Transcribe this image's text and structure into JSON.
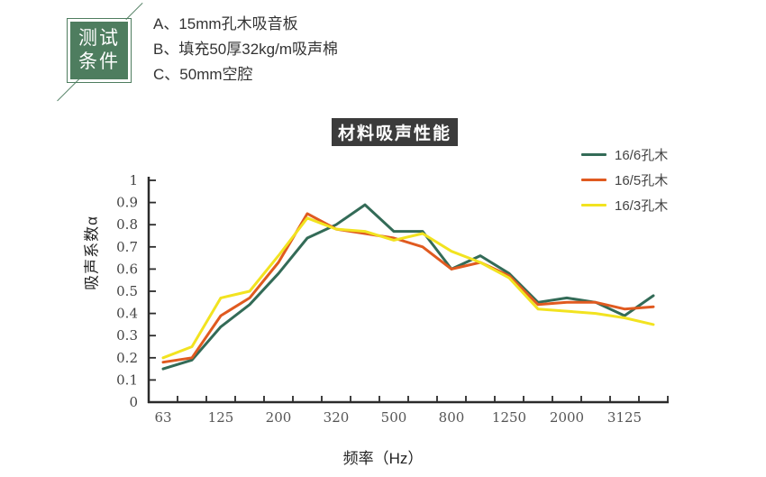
{
  "test_conditions": {
    "badge_line1": "测试",
    "badge_line2": "条件",
    "items": [
      {
        "label": "A、",
        "text": "15mm孔木吸音板"
      },
      {
        "label": "B、",
        "text": "填充50厚32kg/m吸声棉"
      },
      {
        "label": "C、",
        "text": "50mm空腔"
      }
    ]
  },
  "title_badge": "材料吸声性能",
  "colors": {
    "badge_green": "#4e7d5f",
    "title_bg": "#3b3b3b",
    "axis": "#2b2b2b",
    "tick_label": "#555555",
    "series_green": "#336b57",
    "series_orange": "#e05a20",
    "series_yellow": "#f2e320"
  },
  "chart_data": {
    "type": "line",
    "title": "材料吸声性能",
    "xlabel": "频率（Hz）",
    "ylabel": "吸声系数α",
    "ylim": [
      0,
      1
    ],
    "ytick_step": 0.1,
    "grid": false,
    "legend_position": "upper-right-outside",
    "x_tick_labels_visible": [
      "63",
      "125",
      "200",
      "320",
      "500",
      "800",
      "1250",
      "2000",
      "3125"
    ],
    "x_labels": [
      "63",
      "",
      "125",
      "",
      "200",
      "",
      "320",
      "",
      "500",
      "",
      "800",
      "",
      "1250",
      "",
      "2000",
      "",
      "3125",
      ""
    ],
    "series": [
      {
        "name": "16/6孔木",
        "color": "#336b57",
        "values": [
          0.15,
          0.19,
          0.34,
          0.44,
          0.58,
          0.74,
          0.8,
          0.89,
          0.77,
          0.77,
          0.6,
          0.66,
          0.58,
          0.45,
          0.47,
          0.45,
          0.39,
          0.48
        ]
      },
      {
        "name": "16/5孔木",
        "color": "#e05a20",
        "values": [
          0.18,
          0.2,
          0.39,
          0.47,
          0.63,
          0.85,
          0.78,
          0.76,
          0.74,
          0.7,
          0.6,
          0.63,
          0.57,
          0.44,
          0.45,
          0.45,
          0.42,
          0.43
        ]
      },
      {
        "name": "16/3孔木",
        "color": "#f2e320",
        "values": [
          0.2,
          0.25,
          0.47,
          0.5,
          0.66,
          0.83,
          0.78,
          0.77,
          0.73,
          0.76,
          0.68,
          0.63,
          0.56,
          0.42,
          0.41,
          0.4,
          0.38,
          0.35
        ]
      }
    ]
  }
}
